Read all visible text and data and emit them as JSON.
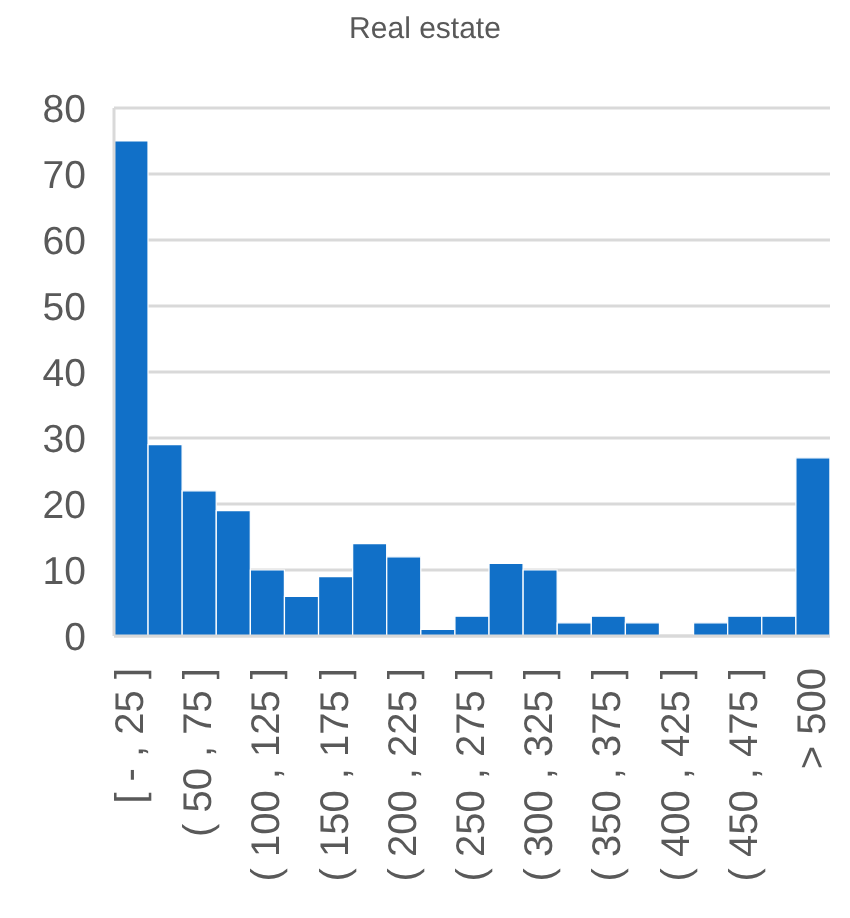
{
  "chart_data": {
    "type": "bar",
    "title": "Real estate",
    "categories": [
      "[ - , 25 ]",
      null,
      "( 50 , 75 ]",
      null,
      "( 100 , 125 ]",
      null,
      "( 150 , 175 ]",
      null,
      "( 200 , 225 ]",
      null,
      "( 250 , 275 ]",
      null,
      "( 300 , 325 ]",
      null,
      "( 350 , 375 ]",
      null,
      "( 400 , 425 ]",
      null,
      "( 450 , 475 ]",
      null,
      "> 500"
    ],
    "values": [
      75,
      29,
      22,
      19,
      10,
      6,
      9,
      14,
      12,
      1,
      3,
      11,
      10,
      2,
      3,
      2,
      0,
      2,
      3,
      3,
      27
    ],
    "color": "#1170c8",
    "ylim": [
      0,
      80
    ],
    "yticks": [
      0,
      10,
      20,
      30,
      40,
      50,
      60,
      70,
      80
    ],
    "grid": "y"
  }
}
